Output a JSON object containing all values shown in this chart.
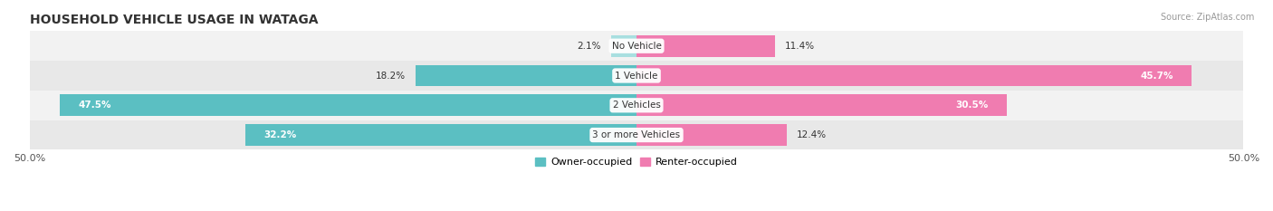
{
  "title": "HOUSEHOLD VEHICLE USAGE IN WATAGA",
  "source": "Source: ZipAtlas.com",
  "categories": [
    "No Vehicle",
    "1 Vehicle",
    "2 Vehicles",
    "3 or more Vehicles"
  ],
  "owner_values": [
    2.1,
    18.2,
    47.5,
    32.2
  ],
  "renter_values": [
    11.4,
    45.7,
    30.5,
    12.4
  ],
  "owner_color": "#5bbfc2",
  "renter_color": "#f07cb0",
  "renter_color_light": "#f9b8d4",
  "owner_color_light": "#a8dfe0",
  "row_bg_odd": "#f2f2f2",
  "row_bg_even": "#e8e8e8",
  "xlim": [
    -50,
    50
  ],
  "legend_owner": "Owner-occupied",
  "legend_renter": "Renter-occupied",
  "bar_height": 0.72,
  "figsize": [
    14.06,
    2.33
  ],
  "dpi": 100,
  "title_fontsize": 10,
  "label_fontsize": 7.5,
  "tick_fontsize": 8
}
